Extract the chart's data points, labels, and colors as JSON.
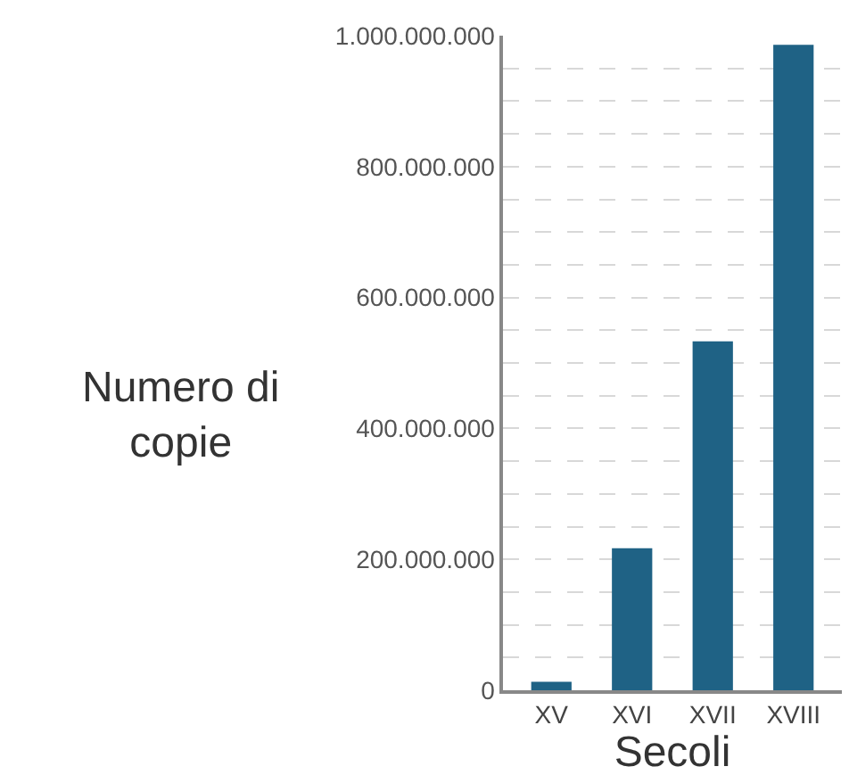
{
  "chart_data": {
    "type": "bar",
    "xlabel": "Secoli",
    "ylabel": "Numero di\ncopie",
    "categories": [
      "XV",
      "XVI",
      "XVII",
      "XVIII"
    ],
    "values": [
      13000000,
      217000000,
      533000000,
      986000000
    ],
    "color": "#1f6285",
    "ylim": [
      0,
      1000000000
    ],
    "yticks": [
      {
        "value": 0,
        "label": "0"
      },
      {
        "value": 50000000,
        "label": null
      },
      {
        "value": 100000000,
        "label": null
      },
      {
        "value": 150000000,
        "label": null
      },
      {
        "value": 200000000,
        "label": "200.000.000"
      },
      {
        "value": 250000000,
        "label": null
      },
      {
        "value": 300000000,
        "label": null
      },
      {
        "value": 350000000,
        "label": null
      },
      {
        "value": 400000000,
        "label": "400.000.000"
      },
      {
        "value": 450000000,
        "label": null
      },
      {
        "value": 500000000,
        "label": null
      },
      {
        "value": 550000000,
        "label": null
      },
      {
        "value": 600000000,
        "label": "600.000.000"
      },
      {
        "value": 650000000,
        "label": null
      },
      {
        "value": 700000000,
        "label": null
      },
      {
        "value": 750000000,
        "label": null
      },
      {
        "value": 800000000,
        "label": "800.000.000"
      },
      {
        "value": 850000000,
        "label": null
      },
      {
        "value": 900000000,
        "label": null
      },
      {
        "value": 950000000,
        "label": null
      },
      {
        "value": 1000000000,
        "label": "1.000.000.000"
      }
    ],
    "grid": "y"
  }
}
